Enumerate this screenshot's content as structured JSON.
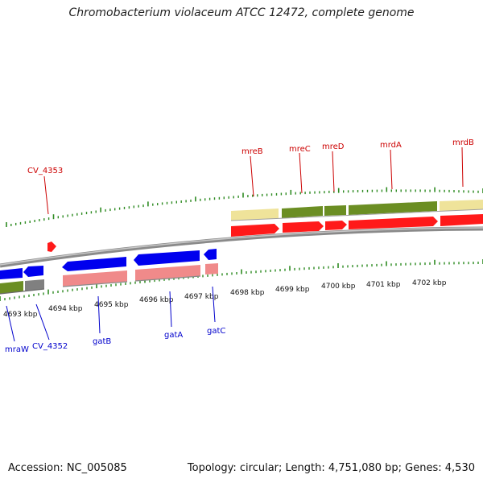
{
  "title": "Chromobacterium violaceum ATCC 12472, complete genome",
  "accession": "Accession: NC_005085",
  "topology": "Topology: circular; Length: 4,751,080 bp; Genes: 4,530",
  "scale": {
    "ticks": [
      "4693 kbp",
      "4694 kbp",
      "4695 kbp",
      "4696 kbp",
      "4697 kbp",
      "4698 kbp",
      "4699 kbp",
      "4700 kbp",
      "4701 kbp",
      "4702 kbp"
    ]
  },
  "colors": {
    "forward_gene": "#ff0000",
    "reverse_gene": "#0000ff",
    "forward_label": "#cc0000",
    "reverse_label": "#0000cc",
    "cds_green": "#6b8e23",
    "cds_khaki": "#f0e68c",
    "cds_pink": "#f08080",
    "cds_grey": "#808080",
    "backbone": "#9a9a9a",
    "tick_green": "#2e8b22"
  },
  "genes": {
    "top_labels": [
      "CV_4353",
      "mreB",
      "mreC",
      "mreD",
      "mrdA",
      "mrdB"
    ],
    "bottom_labels": [
      "mraW",
      "CV_4352",
      "gatB",
      "gatA",
      "gatC"
    ]
  }
}
